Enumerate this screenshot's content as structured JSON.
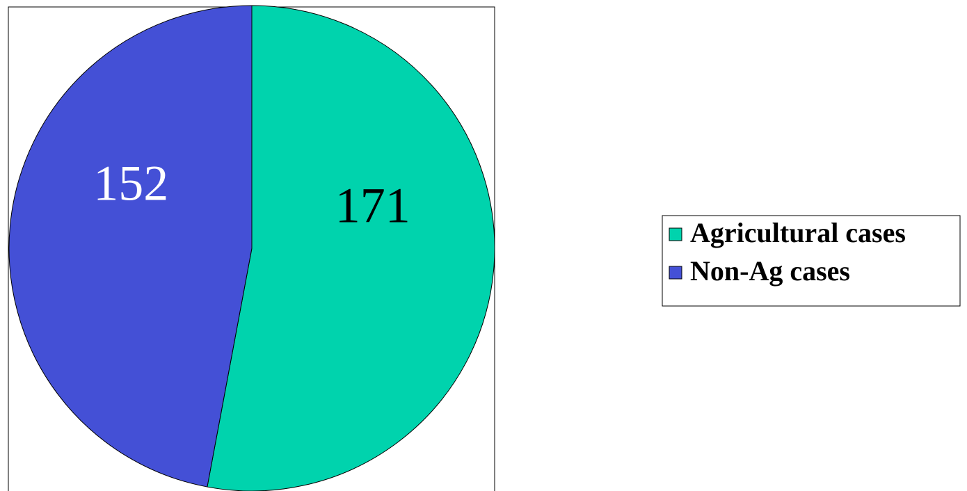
{
  "chart_data": {
    "type": "pie",
    "categories": [
      "Agricultural cases",
      "Non-Ag cases"
    ],
    "values": [
      171,
      152
    ],
    "colors": [
      "#00d3ad",
      "#4450d6"
    ],
    "label_colors": [
      "#000000",
      "#ffffff"
    ],
    "legend": "right"
  }
}
